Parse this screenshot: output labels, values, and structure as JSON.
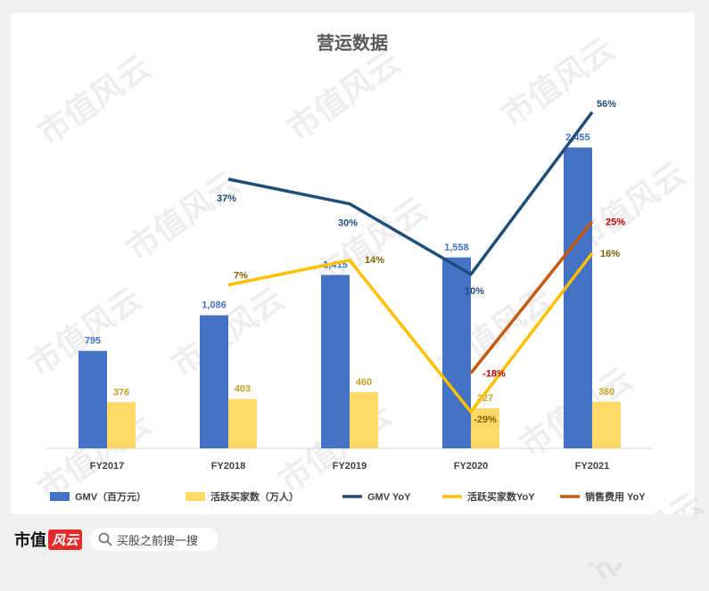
{
  "chart_data": {
    "type": "bar",
    "title": "营运数据",
    "categories": [
      "FY2017",
      "FY2018",
      "FY2019",
      "FY2020",
      "FY2021"
    ],
    "ylim": [
      0,
      2800
    ],
    "pct_range": [
      -30,
      60
    ],
    "bar_series": [
      {
        "name": "GMV（百万元）",
        "color": "#4472c4",
        "label_color": "#4472c4",
        "values": [
          795,
          1086,
          1415,
          1558,
          2455
        ],
        "labels": [
          "795",
          "1,086",
          "1,415",
          "1,558",
          "2,455"
        ]
      },
      {
        "name": "活跃买家数（万人）",
        "color": "#ffd966",
        "label_color": "#c9a227",
        "values": [
          376,
          403,
          460,
          327,
          380
        ],
        "labels": [
          "376",
          "403",
          "460",
          "327",
          "380"
        ]
      }
    ],
    "line_series": [
      {
        "name": "GMV YoY",
        "color": "#1f4e79",
        "label_color": "#1f4e79",
        "values": [
          null,
          37,
          30,
          10,
          56
        ],
        "labels": [
          null,
          "37%",
          "30%",
          "10%",
          "56%"
        ]
      },
      {
        "name": "活跃买家数YoY",
        "color": "#ffc000",
        "label_color": "#7f6000",
        "values": [
          null,
          7,
          14,
          -29,
          16
        ],
        "labels": [
          null,
          "7%",
          "14%",
          "-29%",
          "16%"
        ]
      },
      {
        "name": "销售费用 YoY",
        "color": "#c55a11",
        "label_color": "#c00000",
        "values": [
          null,
          null,
          null,
          -18,
          25
        ],
        "labels": [
          null,
          null,
          null,
          "-18%",
          "25%"
        ]
      }
    ],
    "legend_position": "bottom",
    "grid": false
  },
  "legend": [
    "GMV（百万元）",
    "活跃买家数（万人）",
    "GMV YoY",
    "活跃买家数YoY",
    "销售费用 YoY"
  ],
  "watermark": "市值风云",
  "footer": {
    "logo_text": "市值",
    "logo_badge": "风云",
    "search_placeholder": "买股之前搜一搜"
  }
}
